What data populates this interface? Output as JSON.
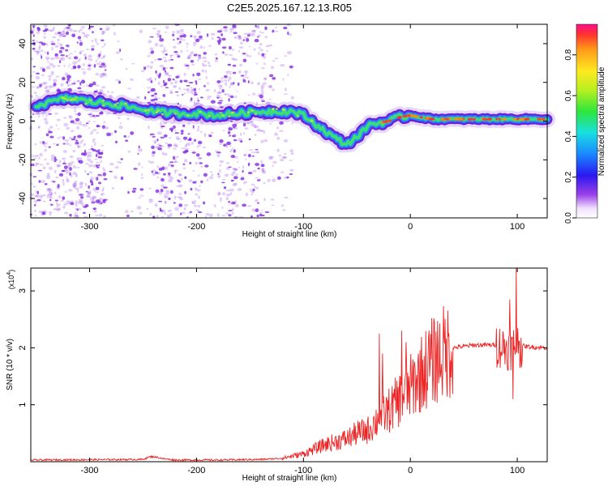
{
  "figure": {
    "title": "C2E5.2025.167.12.13.R05"
  },
  "colors": {
    "scatter": "#7b1fe0",
    "track_outer": "#5a0fd8",
    "track_mid": "#1e90ff",
    "track_core": "#40e070",
    "track_peak": "#ff8c00",
    "snr_line": "#ee2222"
  },
  "chart_data": [
    {
      "type": "heatmap",
      "name": "spectrogram",
      "xlabel": "Height of straight line (km)",
      "ylabel": "Frequency (Hz)",
      "xlim": [
        -355,
        128
      ],
      "ylim": [
        -50,
        50
      ],
      "x_ticks": [
        -300,
        -200,
        -100,
        0,
        100
      ],
      "x_tick_labels": [
        "-300",
        "-200",
        "-100",
        "0",
        "100"
      ],
      "y_ticks": [
        -40,
        -20,
        0,
        20,
        40
      ],
      "y_tick_labels": [
        "-40",
        "-20",
        "0",
        "20",
        "40"
      ],
      "ridge": {
        "x": [
          -350,
          -320,
          -300,
          -280,
          -260,
          -240,
          -220,
          -200,
          -180,
          -160,
          -140,
          -120,
          -110,
          -100,
          -90,
          -80,
          -70,
          -60,
          -55,
          -50,
          -45,
          -40,
          -30,
          -20,
          -10,
          0,
          20,
          50,
          80,
          100,
          128
        ],
        "y": [
          8,
          12,
          10,
          9,
          7,
          5,
          4,
          4,
          3,
          4,
          5,
          5,
          5,
          3,
          -1,
          -5,
          -9,
          -12,
          -10,
          -8,
          -6,
          -2,
          -1,
          0,
          2,
          3,
          1,
          1,
          1,
          1,
          1
        ]
      },
      "colorbar": {
        "label": "Normalized spectral amplitude",
        "range": [
          0,
          0.95
        ],
        "ticks": [
          0.0,
          0.2,
          0.4,
          0.6,
          0.8
        ],
        "tick_labels": [
          "0.0",
          "0.2",
          "0.4",
          "0.6",
          "0.8"
        ]
      }
    },
    {
      "type": "line",
      "name": "snr",
      "xlabel": "Height of straight line (km)",
      "ylabel": "SNR (10 * v/v)",
      "multiplier_label": "(x10",
      "multiplier_exp": "4",
      "multiplier_close": ")",
      "xlim": [
        -355,
        128
      ],
      "ylim": [
        0,
        3.4
      ],
      "x_ticks": [
        -300,
        -200,
        -100,
        0,
        100
      ],
      "x_tick_labels": [
        "-300",
        "-200",
        "-100",
        "0",
        "100"
      ],
      "y_ticks": [
        1,
        2,
        3
      ],
      "y_tick_labels": [
        "1",
        "2",
        "3"
      ],
      "envelope": {
        "x": [
          -355,
          -250,
          -245,
          -240,
          -230,
          -220,
          -180,
          -140,
          -120,
          -110,
          -100,
          -90,
          -80,
          -70,
          -60,
          -50,
          -40,
          -30,
          -20,
          -10,
          0,
          10,
          20,
          30,
          40,
          60,
          80,
          90,
          95,
          100,
          110,
          128
        ],
        "y": [
          0.03,
          0.04,
          0.08,
          0.09,
          0.05,
          0.03,
          0.03,
          0.04,
          0.06,
          0.1,
          0.14,
          0.22,
          0.3,
          0.35,
          0.4,
          0.5,
          0.55,
          0.75,
          0.9,
          1.1,
          1.3,
          1.55,
          1.75,
          1.9,
          2.0,
          2.05,
          2.05,
          2.0,
          2.0,
          2.05,
          2.02,
          2.0
        ]
      },
      "spikes": [
        {
          "x": -29,
          "y": 2.25
        },
        {
          "x": -26,
          "y": 1.9
        },
        {
          "x": -16,
          "y": 1.2
        },
        {
          "x": -8,
          "y": 2.3
        },
        {
          "x": -4,
          "y": 2.1
        },
        {
          "x": 93,
          "y": 2.85
        },
        {
          "x": 96,
          "y": 1.1
        },
        {
          "x": 99,
          "y": 3.4
        },
        {
          "x": 101,
          "y": 1.9
        }
      ]
    }
  ]
}
